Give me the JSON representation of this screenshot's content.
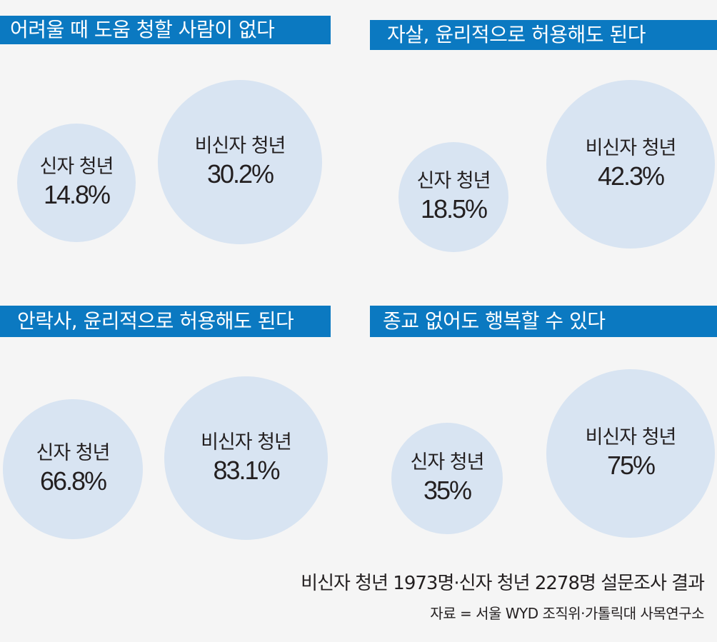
{
  "chart_data": [
    {
      "type": "bubble",
      "title": "어려울 때 도움 청할 사람이 없다",
      "categories": [
        "신자 청년",
        "비신자 청년"
      ],
      "values": [
        "14.8%",
        "30.2%"
      ],
      "numeric": [
        14.8,
        30.2
      ]
    },
    {
      "type": "bubble",
      "title": "자살, 윤리적으로 허용해도 된다",
      "categories": [
        "신자 청년",
        "비신자 청년"
      ],
      "values": [
        "18.5%",
        "42.3%"
      ],
      "numeric": [
        18.5,
        42.3
      ]
    },
    {
      "type": "bubble",
      "title": "안락사, 윤리적으로 허용해도 된다",
      "categories": [
        "신자 청년",
        "비신자 청년"
      ],
      "values": [
        "66.8%",
        "83.1%"
      ],
      "numeric": [
        66.8,
        83.1
      ]
    },
    {
      "type": "bubble",
      "title": "종교 없어도 행복할 수 있다",
      "categories": [
        "신자 청년",
        "비신자 청년"
      ],
      "values": [
        "35%",
        "75%"
      ],
      "numeric": [
        35,
        75
      ]
    }
  ],
  "footer": {
    "note": "비신자 청년 1973명·신자 청년 2278명 설문조사 결과",
    "source": "자료 = 서울 WYD 조직위·가톨릭대 사목연구소"
  },
  "colors": {
    "banner": "#0b79c1",
    "bubble": "#d8e4f2",
    "background": "#f5f5f5"
  }
}
